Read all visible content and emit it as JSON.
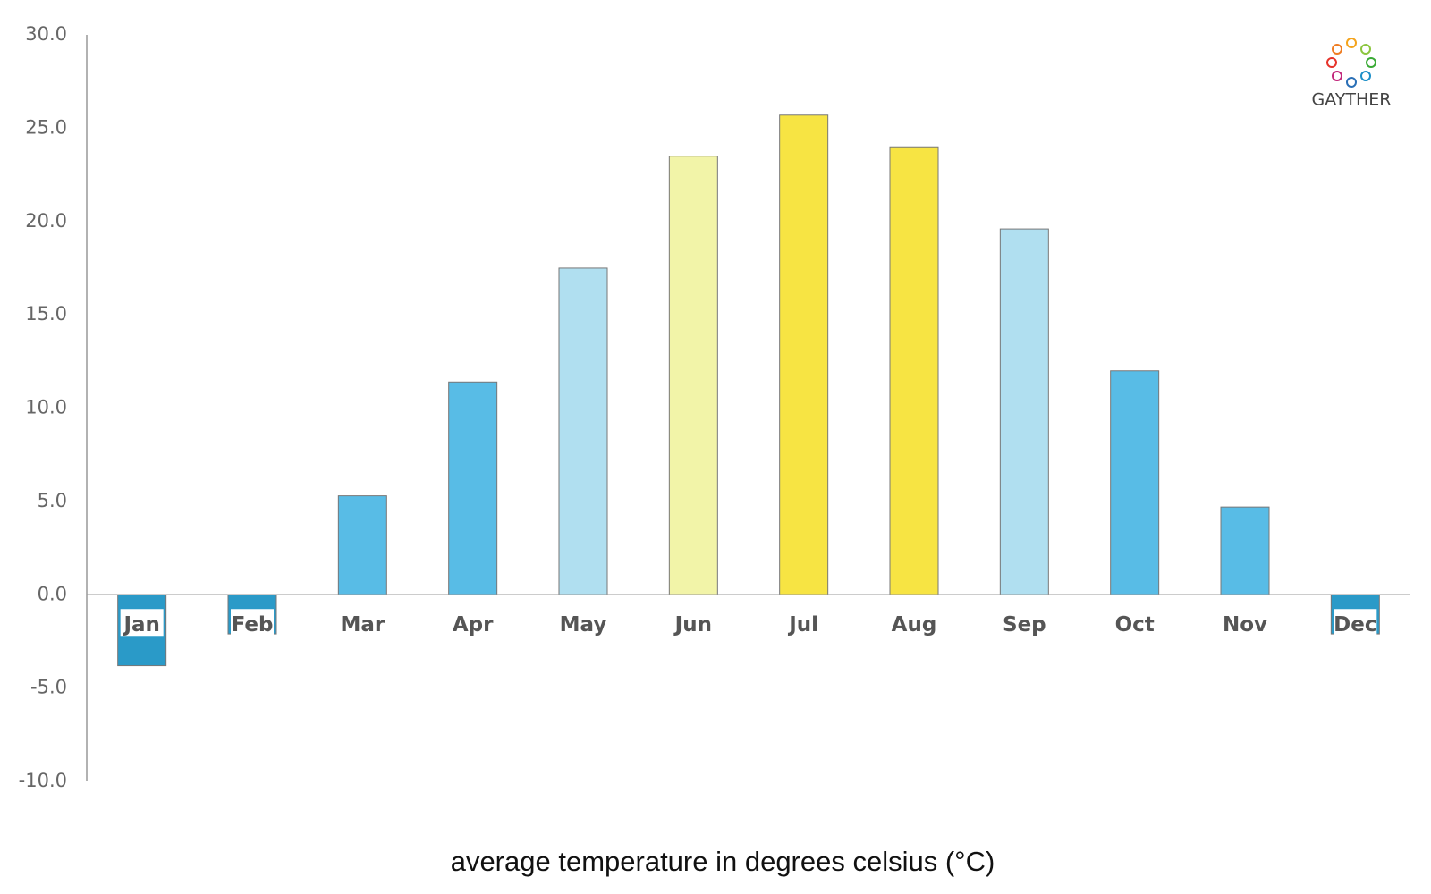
{
  "chart_data": {
    "type": "bar",
    "x_label": "average temperature in degrees celsius (°C)",
    "brand": "GAYTHER",
    "categories": [
      "Jan",
      "Feb",
      "Mar",
      "Apr",
      "May",
      "Jun",
      "Jul",
      "Aug",
      "Sep",
      "Oct",
      "Nov",
      "Dec"
    ],
    "values": [
      -3.8,
      -2.1,
      5.3,
      11.4,
      17.5,
      23.5,
      25.7,
      24.0,
      19.6,
      12.0,
      4.7,
      -2.1
    ],
    "colors": [
      "#2a9ac8",
      "#2a9ac8",
      "#58bce6",
      "#58bce6",
      "#b0dff0",
      "#f2f4a8",
      "#f7e443",
      "#f7e443",
      "#b0dff0",
      "#58bce6",
      "#58bce6",
      "#2a9ac8"
    ],
    "ylim": [
      -10,
      30
    ],
    "yticks": [
      {
        "value": -10,
        "label": "-10.0"
      },
      {
        "value": -5,
        "label": "-5.0"
      },
      {
        "value": 0,
        "label": "0.0"
      },
      {
        "value": 5,
        "label": "5.0"
      },
      {
        "value": 10,
        "label": "10.0"
      },
      {
        "value": 15,
        "label": "15.0"
      },
      {
        "value": 20,
        "label": "20.0"
      },
      {
        "value": 25,
        "label": "25.0"
      },
      {
        "value": 30,
        "label": "30.0"
      }
    ],
    "grid": false
  }
}
